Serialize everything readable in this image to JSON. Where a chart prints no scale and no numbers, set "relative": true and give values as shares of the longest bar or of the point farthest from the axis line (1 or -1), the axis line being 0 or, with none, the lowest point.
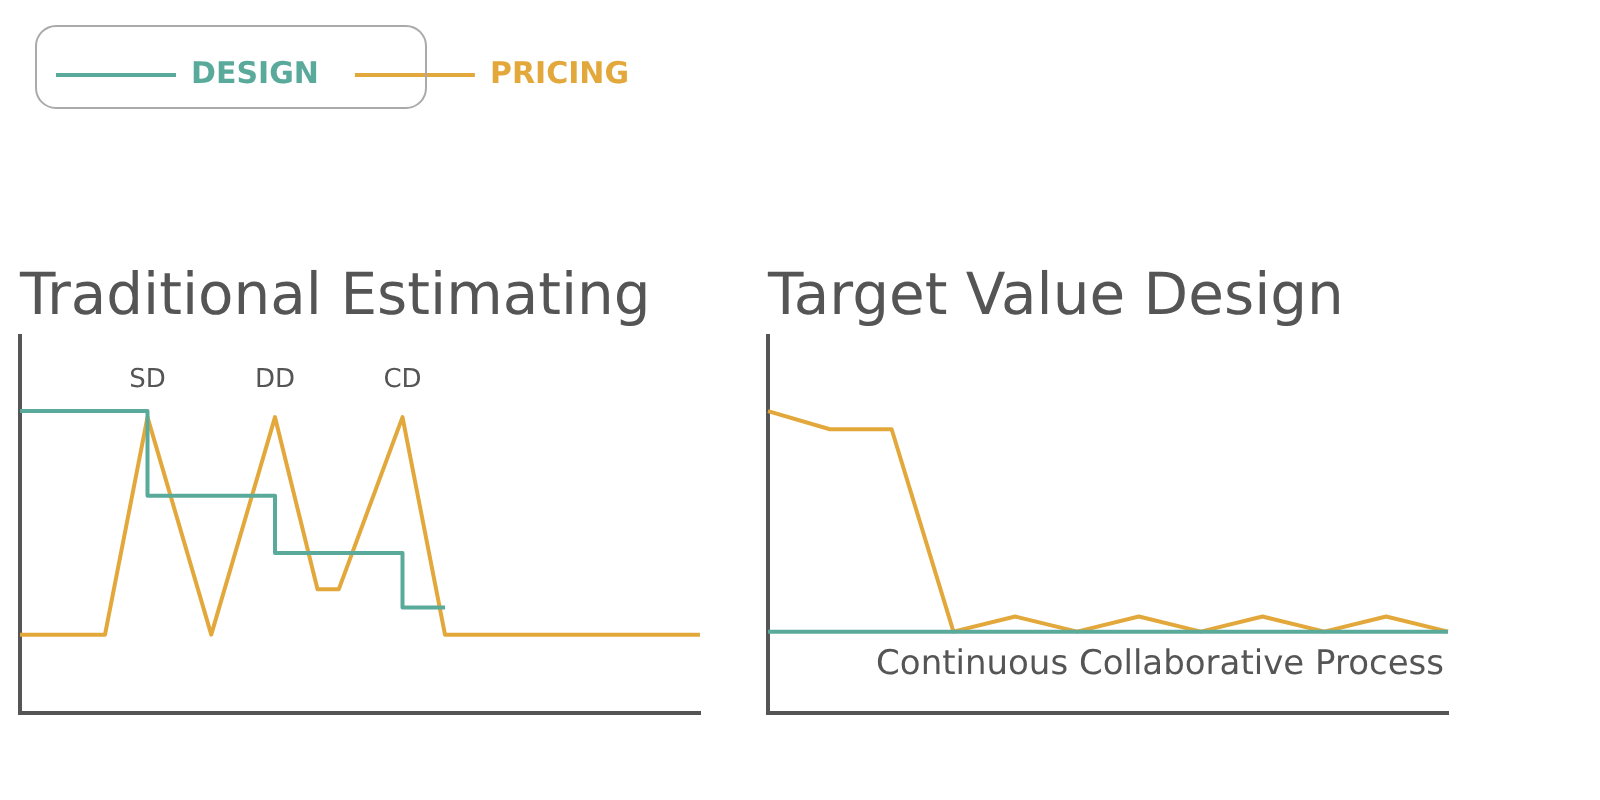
{
  "chart_data": [
    {
      "type": "line",
      "title": "Traditional Estimating",
      "relative": true,
      "legend": "top left",
      "marker": "none",
      "line_style": "solid",
      "categories": [
        null,
        null,
        null,
        null,
        null,
        null,
        null,
        null,
        null,
        null,
        null,
        null,
        null,
        null,
        null,
        null,
        null,
        null,
        null,
        null,
        null,
        null,
        null,
        null,
        null,
        null,
        null,
        null,
        null,
        null,
        null,
        null,
        null
      ],
      "series": [
        {
          "name": "DESIGN",
          "type": "step",
          "color": "#5aaa9c",
          "values": [
            1.0,
            null,
            null,
            null,
            null,
            null,
            0.72,
            null,
            null,
            null,
            null,
            null,
            0.53,
            null,
            null,
            null,
            null,
            null,
            0.35,
            null,
            0.35,
            null,
            null,
            null,
            null,
            null,
            null,
            null,
            null,
            null,
            null,
            null,
            null
          ]
        },
        {
          "name": "PRICING",
          "color": "#e3a83b",
          "values": [
            0.26,
            null,
            null,
            null,
            0.26,
            null,
            0.98,
            null,
            null,
            0.26,
            null,
            null,
            0.98,
            null,
            0.41,
            0.41,
            null,
            null,
            0.98,
            null,
            0.26,
            null,
            null,
            null,
            null,
            null,
            null,
            null,
            null,
            null,
            null,
            null,
            0.26
          ]
        }
      ],
      "annotations": [
        "SD",
        "DD",
        "CD"
      ]
    },
    {
      "type": "line",
      "title": "Target Value Design",
      "relative": true,
      "marker": "none",
      "line_style": "solid",
      "categories": [
        null,
        null,
        null,
        null,
        null,
        null,
        null,
        null,
        null,
        null,
        null,
        null
      ],
      "series": [
        {
          "color": "#5aaa9c",
          "values": [
            0.27,
            0.27,
            0.27,
            0.27,
            0.27,
            0.27,
            0.27,
            0.27,
            0.27,
            0.27,
            0.27,
            0.27
          ]
        },
        {
          "color": "#e3a83b",
          "values": [
            1.0,
            0.94,
            0.94,
            0.27,
            0.32,
            0.27,
            0.32,
            0.27,
            0.32,
            0.27,
            0.32,
            0.27
          ]
        }
      ],
      "annotations": [
        "Continuous Collaborative Process"
      ]
    }
  ]
}
